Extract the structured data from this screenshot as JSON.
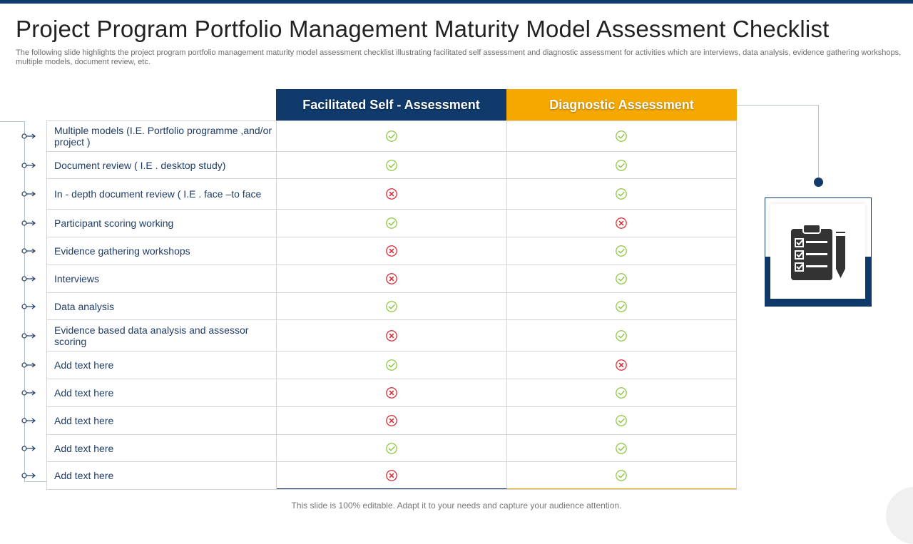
{
  "title": "Project Program Portfolio Management Maturity Model Assessment  Checklist",
  "subtitle": "The following slide highlights the project program portfolio management maturity model assessment checklist illustrating facilitated self assessment and diagnostic assessment for activities which are interviews, data analysis, evidence gathering workshops, multiple models, document review, etc.",
  "columns": [
    "Facilitated Self - Assessment",
    "Diagnostic Assessment"
  ],
  "colors": {
    "navy": "#0f3a6b",
    "yellow": "#f5a800",
    "check": "#8cc63f",
    "cross": "#d9262e"
  },
  "rows": [
    {
      "label": "Multiple models (I.E.  Portfolio programme ,and/or project )",
      "self": "check",
      "diag": "check"
    },
    {
      "label": "Document review ( I.E . desktop study)",
      "self": "check",
      "diag": "check"
    },
    {
      "label": "In - depth document review ( I.E . face –to face",
      "self": "cross",
      "diag": "check"
    },
    {
      "label": "Participant scoring working",
      "self": "check",
      "diag": "cross"
    },
    {
      "label": "Evidence gathering workshops",
      "self": "cross",
      "diag": "check"
    },
    {
      "label": "Interviews",
      "self": "cross",
      "diag": "check"
    },
    {
      "label": "Data analysis",
      "self": "check",
      "diag": "check"
    },
    {
      "label": "Evidence based data analysis and assessor scoring",
      "self": "cross",
      "diag": "check"
    },
    {
      "label": "Add text here",
      "self": "check",
      "diag": "cross"
    },
    {
      "label": "Add text here",
      "self": "cross",
      "diag": "check"
    },
    {
      "label": "Add text here",
      "self": "cross",
      "diag": "check"
    },
    {
      "label": "Add text here",
      "self": "check",
      "diag": "check"
    },
    {
      "label": "Add text here",
      "self": "cross",
      "diag": "check"
    }
  ],
  "side_icon": "clipboard-checklist-pencil-icon",
  "footer": "This slide is 100% editable. Adapt it to your  needs and capture your audience attention."
}
